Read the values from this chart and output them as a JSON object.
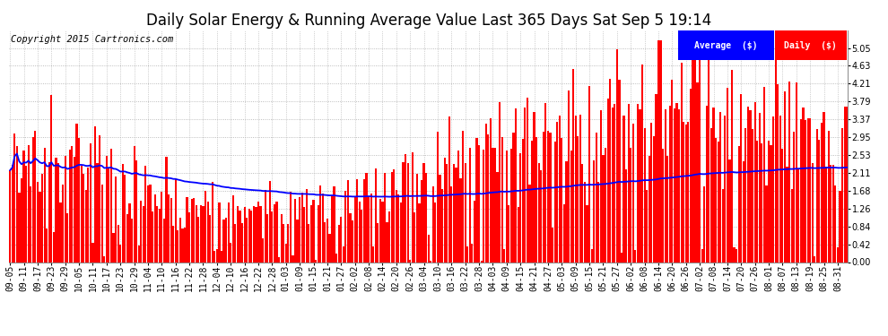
{
  "title": "Daily Solar Energy & Running Average Value Last 365 Days Sat Sep 5 19:14",
  "copyright": "Copyright 2015 Cartronics.com",
  "bar_color": "#ff0000",
  "avg_color": "#0000ff",
  "bg_color": "#ffffff",
  "plot_bg_color": "#ffffff",
  "grid_color": "#aaaaaa",
  "ylim": [
    0.0,
    5.47
  ],
  "yticks": [
    0.0,
    0.42,
    0.84,
    1.26,
    1.68,
    2.11,
    2.53,
    2.95,
    3.37,
    3.79,
    4.21,
    4.63,
    5.05
  ],
  "legend_avg_label": "Average  ($)",
  "legend_daily_label": "Daily  ($)",
  "legend_avg_bg": "#0000ff",
  "legend_daily_bg": "#ff0000",
  "figsize": [
    9.9,
    3.75
  ],
  "dpi": 100,
  "title_fontsize": 12,
  "tick_fontsize": 7,
  "copyright_fontsize": 7.5
}
